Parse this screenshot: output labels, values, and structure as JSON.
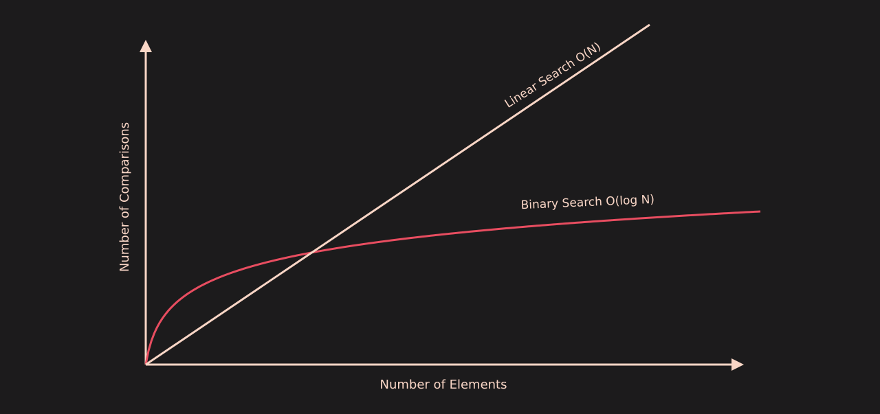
{
  "colors": {
    "background": "#1c1b1c",
    "axis": "#f9d6c6",
    "text": "#f9d6c6",
    "linear": "#f9d6c6",
    "binary": "#e84d60"
  },
  "chart_data": {
    "type": "line",
    "xlabel": "Number of Elements",
    "ylabel": "Number of Comparisons",
    "grid": false,
    "axis_ticks": false,
    "series": [
      {
        "name": "Linear Search O(N)",
        "function": "linear",
        "color": "#f9d6c6"
      },
      {
        "name": "Binary Search O(log N)",
        "function": "logarithmic",
        "color": "#e84d60"
      }
    ]
  }
}
